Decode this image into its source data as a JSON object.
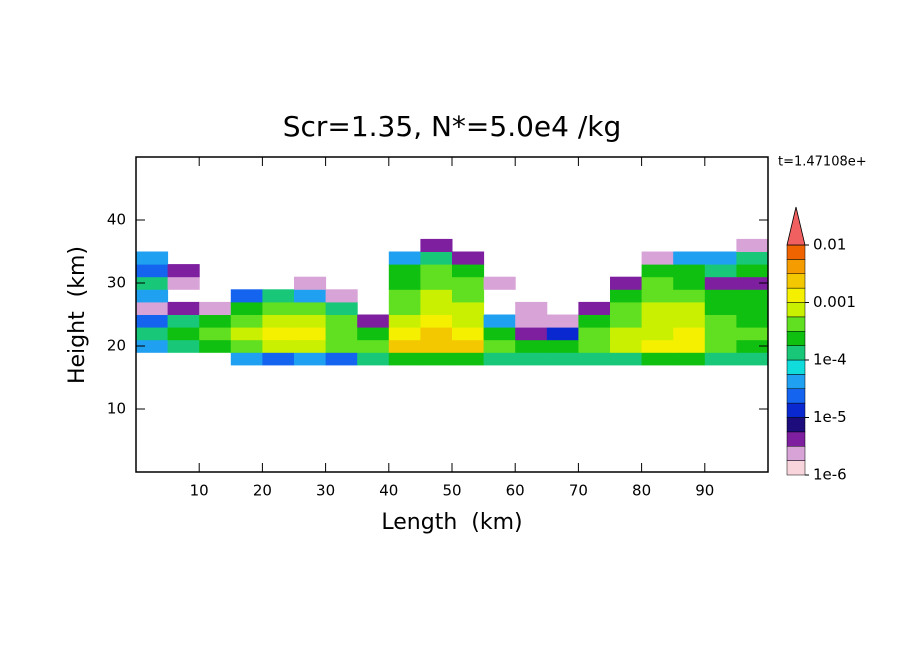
{
  "chart_data": {
    "type": "contour",
    "title": "Scr=1.35, N*=5.0e4 /kg",
    "annotation": "t=1.47108e+",
    "x_label": "Length  (km)",
    "y_label": "Height  (km)",
    "xlim": [
      0,
      100
    ],
    "xticks": [
      10,
      20,
      30,
      40,
      50,
      60,
      70,
      80,
      90
    ],
    "ylim": [
      0,
      50
    ],
    "yticks": [
      10,
      20,
      30,
      40
    ],
    "x": [
      2.5,
      7.5,
      12.5,
      17.5,
      22.5,
      27.5,
      32.5,
      37.5,
      42.5,
      47.5,
      52.5,
      57.5,
      62.5,
      67.5,
      72.5,
      77.5,
      82.5,
      87.5,
      92.5,
      97.5
    ],
    "y": [
      18,
      20,
      22,
      24,
      26,
      28,
      30,
      32,
      34,
      36
    ],
    "z": [
      [
        null,
        null,
        null,
        5e-05,
        3e-05,
        5e-05,
        3e-05,
        0.0001,
        0.0002,
        0.0003,
        0.0002,
        0.0001,
        0.0001,
        0.0001,
        0.0001,
        0.0001,
        0.0002,
        0.0002,
        0.0001,
        0.0001
      ],
      [
        5e-05,
        0.0001,
        0.0002,
        0.0005,
        0.0006,
        0.0006,
        0.0004,
        0.0004,
        0.002,
        0.003,
        0.002,
        0.0005,
        0.0003,
        0.0003,
        0.0005,
        0.0007,
        0.001,
        0.001,
        0.0005,
        0.0003
      ],
      [
        0.0001,
        0.0003,
        0.0005,
        0.0007,
        0.001,
        0.001,
        0.0005,
        0.0002,
        0.001,
        0.002,
        0.001,
        0.0003,
        5e-06,
        1e-05,
        0.0004,
        0.0006,
        0.0008,
        0.001,
        0.0005,
        0.0004
      ],
      [
        3e-05,
        0.0001,
        0.0003,
        0.0005,
        0.0007,
        0.0007,
        0.0004,
        5e-06,
        0.0008,
        0.001,
        0.0008,
        5e-05,
        2e-06,
        2e-06,
        0.0002,
        0.0005,
        0.0007,
        0.0008,
        0.0004,
        0.0003
      ],
      [
        2e-06,
        5e-06,
        3e-06,
        0.0003,
        0.0005,
        0.0004,
        0.0001,
        null,
        0.0005,
        0.0007,
        0.0006,
        null,
        2e-06,
        null,
        5e-06,
        0.0004,
        0.0006,
        0.0007,
        0.0003,
        0.0002
      ],
      [
        5e-05,
        null,
        null,
        2e-05,
        0.0001,
        5e-05,
        3e-06,
        null,
        0.0004,
        0.0006,
        0.0005,
        null,
        null,
        null,
        null,
        0.0003,
        0.0005,
        0.0005,
        0.0002,
        0.0002
      ],
      [
        0.0001,
        3e-06,
        null,
        null,
        null,
        2e-06,
        null,
        null,
        0.0003,
        0.0005,
        0.0004,
        3e-06,
        null,
        null,
        null,
        5e-06,
        0.0004,
        0.0003,
        5e-06,
        5e-06
      ],
      [
        3e-05,
        5e-06,
        null,
        null,
        null,
        null,
        null,
        null,
        0.0002,
        0.0004,
        0.0002,
        null,
        null,
        null,
        null,
        null,
        0.0002,
        0.0002,
        0.0001,
        0.0002
      ],
      [
        5e-05,
        null,
        null,
        null,
        null,
        null,
        null,
        null,
        5e-05,
        0.0001,
        5e-06,
        null,
        null,
        null,
        null,
        null,
        3e-06,
        5e-05,
        5e-05,
        0.0001
      ],
      [
        null,
        null,
        null,
        null,
        null,
        null,
        null,
        null,
        null,
        5e-06,
        null,
        null,
        null,
        null,
        null,
        null,
        null,
        null,
        null,
        3e-06
      ]
    ],
    "colorbar": {
      "log": true,
      "levels": [
        1e-06,
        1.778e-06,
        3.162e-06,
        5.623e-06,
        1e-05,
        1.778e-05,
        3.162e-05,
        5.623e-05,
        0.0001,
        0.0001778,
        0.0003162,
        0.0005623,
        0.001,
        0.001778,
        0.003162,
        0.005623,
        0.01
      ],
      "colors": [
        "#f8d4dc",
        "#d8a4d8",
        "#7e1fa0",
        "#1c0c7c",
        "#0a28d0",
        "#1464f0",
        "#20a0f0",
        "#10dcdc",
        "#18c878",
        "#10c010",
        "#60e020",
        "#c8f000",
        "#f4f000",
        "#f4c800",
        "#f49c00",
        "#f06400"
      ],
      "extend_color": "#f06060",
      "ticks": [
        {
          "value": 1e-06,
          "label": "1e-6"
        },
        {
          "value": 1e-05,
          "label": "1e-5"
        },
        {
          "value": 0.0001,
          "label": "1e-4"
        },
        0.001,
        0.01
      ]
    }
  }
}
